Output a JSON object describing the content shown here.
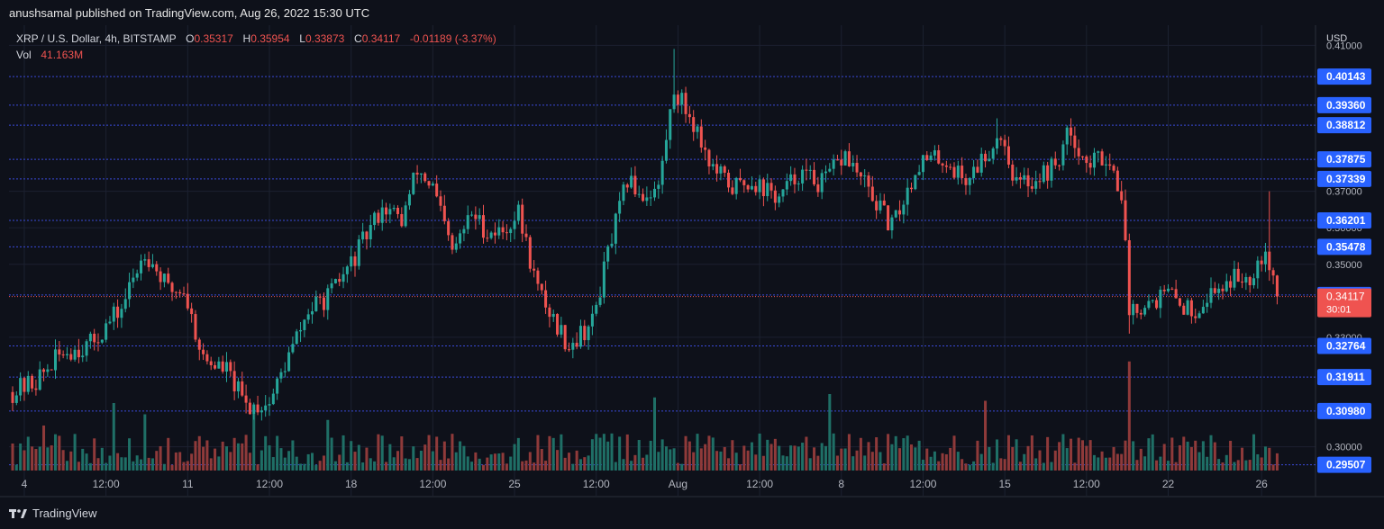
{
  "publisher_line": "anushsamal published on TradingView.com, Aug 26, 2022 15:30 UTC",
  "legend": {
    "symbol": "XRP / U.S. Dollar, 4h, BITSTAMP",
    "open_label": "O",
    "open": "0.35317",
    "high_label": "H",
    "high": "0.35954",
    "low_label": "L",
    "low": "0.33873",
    "close_label": "C",
    "close": "0.34117",
    "change": "-0.01189 (-3.37%)",
    "vol_label": "Vol",
    "vol": "41.163M"
  },
  "footer": {
    "brand": "TradingView"
  },
  "colors": {
    "background": "#0e111a",
    "grid": "#1c2130",
    "up": "#26a69a",
    "down": "#ef5350",
    "vol_up": "#1f6f66",
    "vol_down": "#8f3a3a",
    "level_line": "#3a4ad8",
    "level_badge": "#2962ff",
    "price_badge": "#ef5350"
  },
  "chart_data": {
    "type": "candlestick",
    "currency_label": "USD",
    "ylim": [
      0.2935,
      0.4155
    ],
    "y_ticks": [
      "0.41000",
      "0.37000",
      "0.36000",
      "0.35000",
      "0.33000",
      "0.30000"
    ],
    "x_ticks": [
      {
        "label": "4",
        "bar": 3
      },
      {
        "label": "12:00",
        "bar": 24
      },
      {
        "label": "11",
        "bar": 45
      },
      {
        "label": "12:00",
        "bar": 66
      },
      {
        "label": "18",
        "bar": 87
      },
      {
        "label": "12:00",
        "bar": 108
      },
      {
        "label": "25",
        "bar": 129
      },
      {
        "label": "12:00",
        "bar": 150
      },
      {
        "label": "Aug",
        "bar": 171
      },
      {
        "label": "12:00",
        "bar": 192
      },
      {
        "label": "8",
        "bar": 213
      },
      {
        "label": "12:00",
        "bar": 234
      },
      {
        "label": "15",
        "bar": 255
      },
      {
        "label": "12:00",
        "bar": 276
      },
      {
        "label": "22",
        "bar": 297
      },
      {
        "label": "26",
        "bar": 321
      }
    ],
    "bars_total": 331,
    "level_lines": [
      "0.40143",
      "0.39360",
      "0.38812",
      "0.37875",
      "0.37339",
      "0.36201",
      "0.35478",
      "0.34160",
      "0.32764",
      "0.31911",
      "0.30980",
      "0.29507"
    ],
    "current_price": "0.34117",
    "countdown": "30:01",
    "price_path": [
      [
        0,
        0.315
      ],
      [
        6,
        0.318
      ],
      [
        13,
        0.326
      ],
      [
        20,
        0.328
      ],
      [
        28,
        0.338
      ],
      [
        34,
        0.354
      ],
      [
        40,
        0.343
      ],
      [
        44,
        0.343
      ],
      [
        49,
        0.324
      ],
      [
        55,
        0.321
      ],
      [
        60,
        0.311
      ],
      [
        66,
        0.312
      ],
      [
        71,
        0.325
      ],
      [
        76,
        0.337
      ],
      [
        82,
        0.342
      ],
      [
        88,
        0.352
      ],
      [
        95,
        0.366
      ],
      [
        100,
        0.362
      ],
      [
        104,
        0.376
      ],
      [
        108,
        0.371
      ],
      [
        113,
        0.353
      ],
      [
        118,
        0.364
      ],
      [
        122,
        0.359
      ],
      [
        126,
        0.359
      ],
      [
        130,
        0.364
      ],
      [
        135,
        0.343
      ],
      [
        140,
        0.333
      ],
      [
        143,
        0.328
      ],
      [
        149,
        0.334
      ],
      [
        153,
        0.353
      ],
      [
        158,
        0.373
      ],
      [
        162,
        0.369
      ],
      [
        166,
        0.371
      ],
      [
        170,
        0.398
      ],
      [
        175,
        0.389
      ],
      [
        180,
        0.376
      ],
      [
        185,
        0.371
      ],
      [
        190,
        0.373
      ],
      [
        197,
        0.368
      ],
      [
        202,
        0.375
      ],
      [
        208,
        0.372
      ],
      [
        214,
        0.38
      ],
      [
        220,
        0.37
      ],
      [
        226,
        0.36
      ],
      [
        233,
        0.378
      ],
      [
        239,
        0.379
      ],
      [
        245,
        0.373
      ],
      [
        250,
        0.38
      ],
      [
        254,
        0.386
      ],
      [
        258,
        0.372
      ],
      [
        262,
        0.373
      ],
      [
        268,
        0.377
      ],
      [
        272,
        0.387
      ],
      [
        276,
        0.377
      ],
      [
        281,
        0.38
      ],
      [
        285,
        0.37
      ],
      [
        287,
        0.338
      ],
      [
        292,
        0.34
      ],
      [
        297,
        0.342
      ],
      [
        303,
        0.337
      ],
      [
        308,
        0.342
      ],
      [
        313,
        0.346
      ],
      [
        318,
        0.347
      ],
      [
        322,
        0.355
      ],
      [
        325,
        0.341
      ]
    ],
    "volume_spikes": [
      [
        8,
        0.4
      ],
      [
        26,
        0.6
      ],
      [
        34,
        0.5
      ],
      [
        62,
        0.5
      ],
      [
        81,
        0.45
      ],
      [
        165,
        0.65
      ],
      [
        210,
        0.68
      ],
      [
        250,
        0.62
      ],
      [
        287,
        0.97
      ],
      [
        326,
        0.78
      ]
    ]
  }
}
